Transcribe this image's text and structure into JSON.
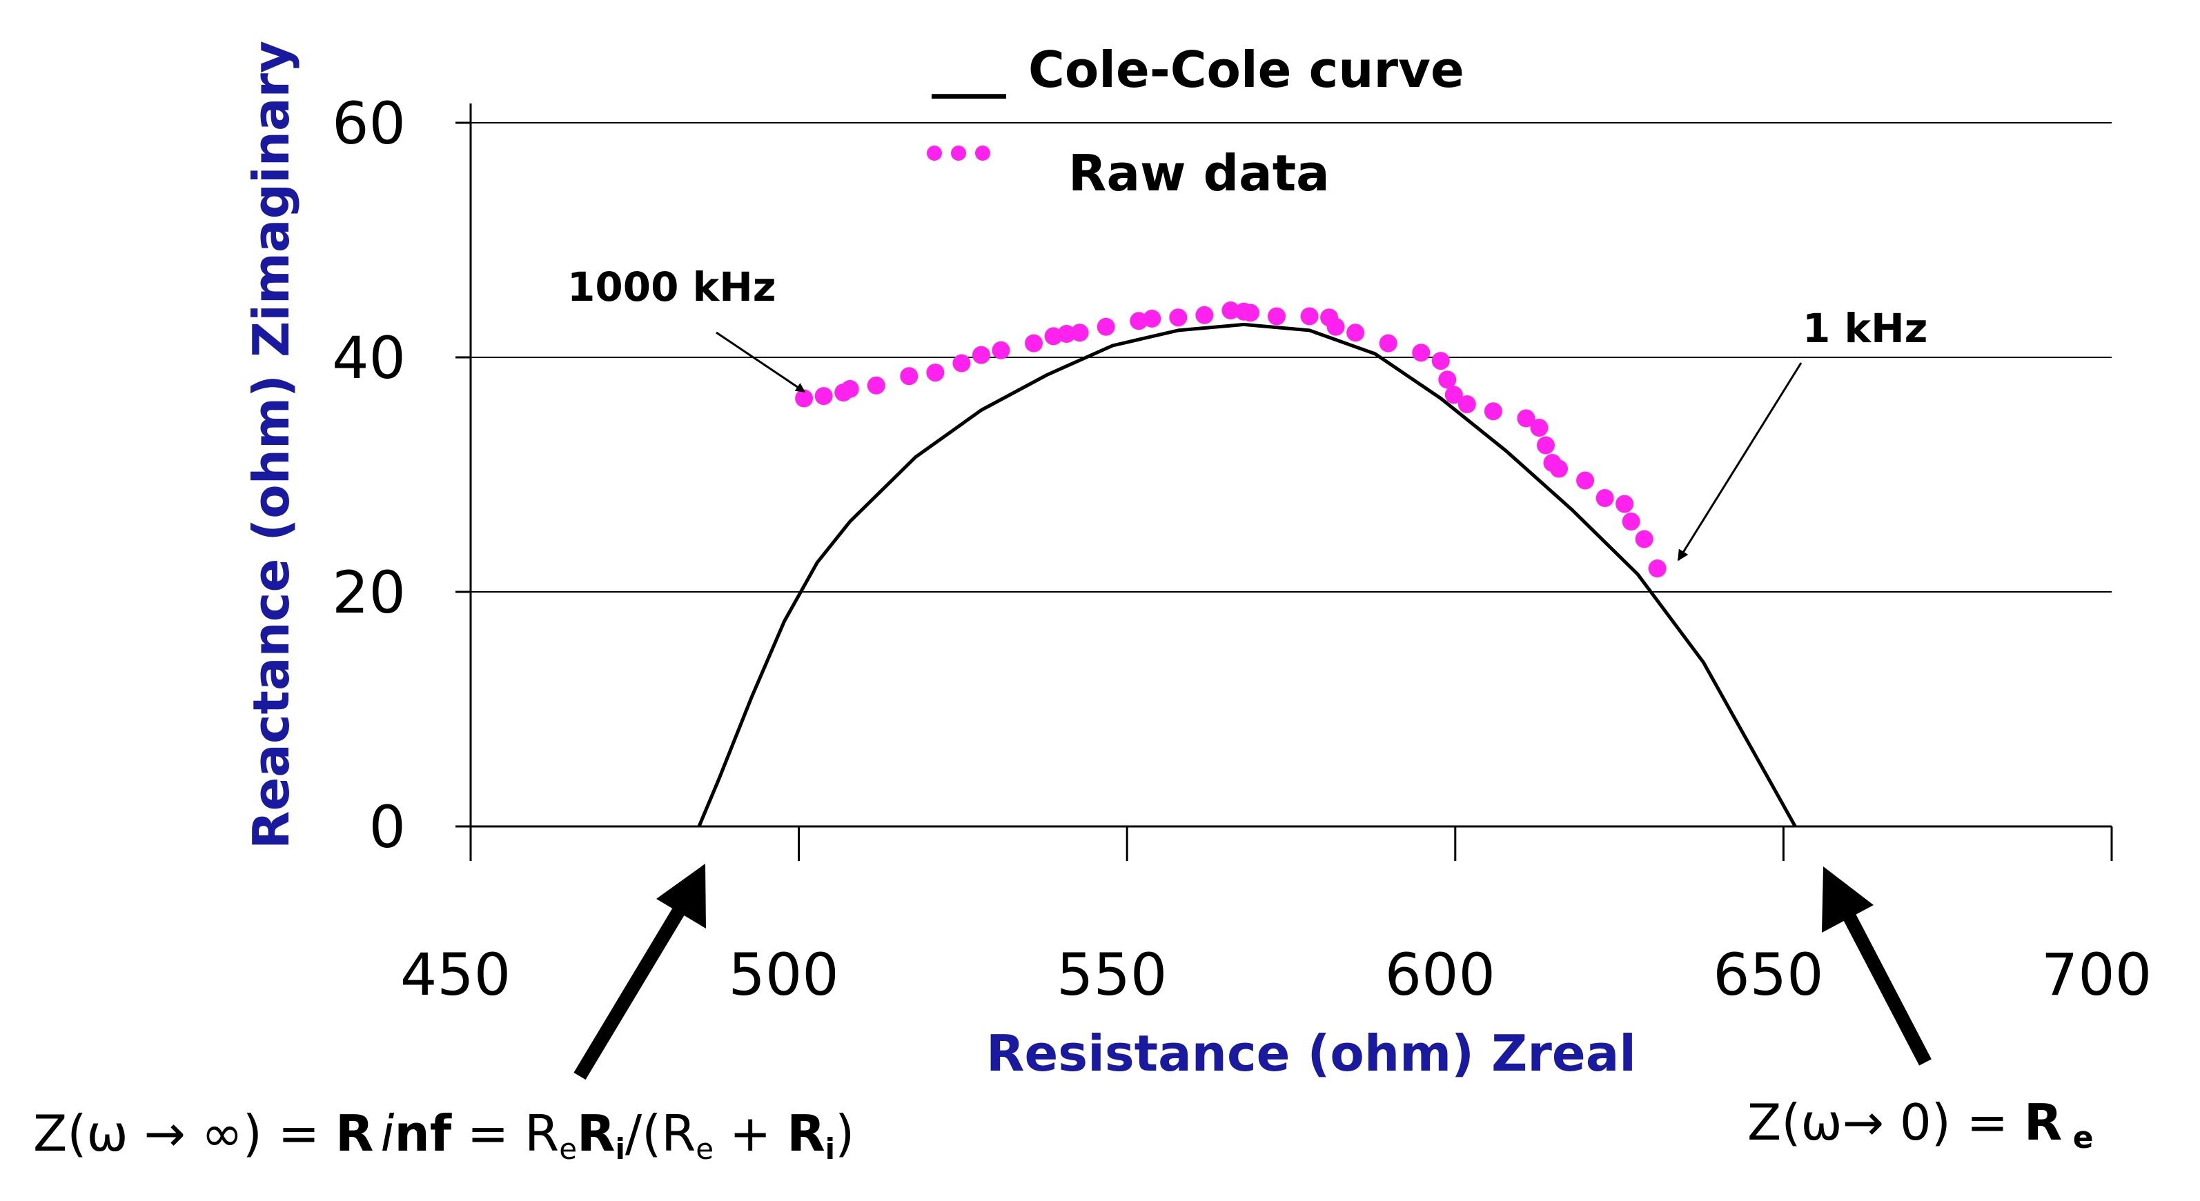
{
  "chart_data": {
    "type": "scatter",
    "xlabel": "Resistance (ohm) Zreal",
    "ylabel": "Reactance (ohm) Zimaginary",
    "xlim": [
      450,
      700
    ],
    "ylim": [
      0,
      60
    ],
    "x_ticks": [
      450,
      500,
      550,
      600,
      650,
      700
    ],
    "y_ticks": [
      0,
      20,
      40,
      60
    ],
    "grid": "horizontal",
    "legend": {
      "position": "top-center",
      "entries": [
        {
          "label": "Cole-Cole curve",
          "symbol": "line",
          "marker_text": "___"
        },
        {
          "label": "Raw data",
          "symbol": "dots"
        }
      ]
    },
    "series": [
      {
        "name": "Cole-Cole curve",
        "kind": "line",
        "color": "#000000",
        "x": [
          487,
          490,
          495,
          500,
          505,
          510,
          520,
          530,
          540,
          550,
          560,
          570,
          580,
          590,
          600,
          610,
          620,
          630,
          640,
          645,
          650,
          654
        ],
        "y": [
          0,
          4,
          11,
          17.5,
          22.5,
          26,
          31.5,
          35.5,
          38.5,
          41,
          42.3,
          42.8,
          42.3,
          40.3,
          36.5,
          32,
          27,
          21.5,
          14,
          9,
          4,
          0
        ]
      },
      {
        "name": "Raw data",
        "kind": "scatter",
        "color": "#ff22ee",
        "x": [
          503,
          506,
          509,
          510,
          514,
          519,
          523,
          527,
          530,
          533,
          538,
          541,
          543,
          545,
          549,
          554,
          556,
          560,
          564,
          568,
          570,
          571,
          575,
          580,
          583,
          584,
          587,
          592,
          597,
          600,
          601,
          602,
          604,
          608,
          613,
          615,
          616,
          617,
          618,
          622,
          625,
          628,
          629,
          631,
          633
        ],
        "y": [
          36.5,
          36.7,
          37,
          37.3,
          37.6,
          38.4,
          38.7,
          39.5,
          40.2,
          40.6,
          41.2,
          41.8,
          42,
          42.1,
          42.6,
          43.1,
          43.3,
          43.4,
          43.6,
          44,
          43.9,
          43.8,
          43.5,
          43.5,
          43.4,
          42.6,
          42.1,
          41.2,
          40.4,
          39.7,
          38.1,
          36.8,
          36,
          35.4,
          34.8,
          34,
          32.5,
          31,
          30.5,
          29.5,
          28,
          27.5,
          26,
          24.5,
          22
        ]
      }
    ],
    "annotations": [
      {
        "text": "1000 kHz",
        "points_to": [
          503,
          36.5
        ]
      },
      {
        "text": "1 kHz",
        "points_to": [
          633,
          23
        ]
      }
    ],
    "formulas": {
      "left": {
        "lhs": "Z(ω → ∞) = ",
        "r": "R",
        "inf_i": "i",
        "inf_nf": "nf",
        "eq": " = R",
        "sub_e": "e",
        "ri": "R",
        "sub_i": "i",
        "slash": "/(R",
        "sub_e2": "e",
        "plus": " + ",
        "ri2": "R",
        "sub_i2": "i",
        "close": ")"
      },
      "right": {
        "lhs": "Z(ω→ 0) = ",
        "r": "R",
        "sub": " e"
      }
    }
  }
}
